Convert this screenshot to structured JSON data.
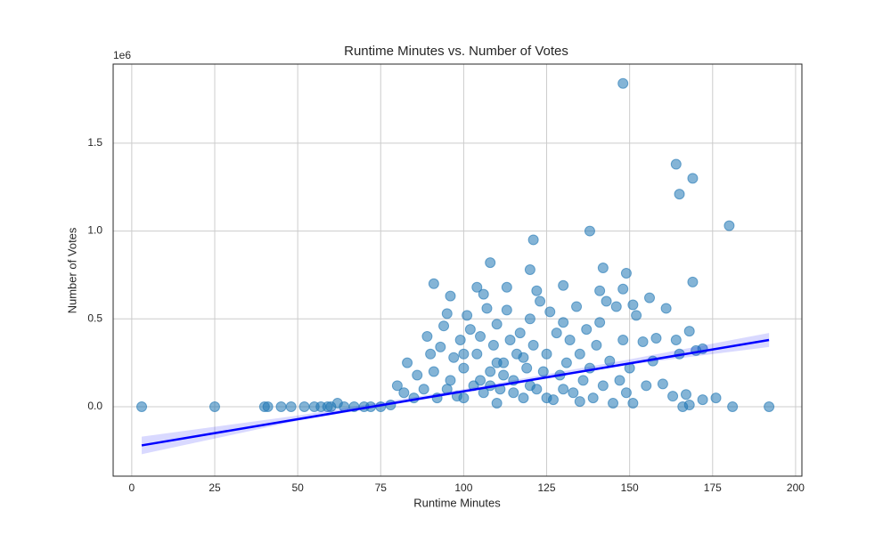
{
  "chart_data": {
    "type": "scatter",
    "title": "Runtime Minutes vs. Number of Votes",
    "xlabel": "Runtime Minutes",
    "ylabel": "Number of Votes",
    "y_offset_label": "1e6",
    "xlim": [
      -5.6,
      201.9
    ],
    "ylim": [
      -0.395,
      1.95
    ],
    "xticks": [
      0,
      25,
      50,
      75,
      100,
      125,
      150,
      175,
      200
    ],
    "yticks": [
      {
        "value": 0,
        "label": "0.0"
      },
      0.5,
      {
        "value": 1,
        "label": "1.0"
      },
      1.5
    ],
    "grid": true,
    "color": "#1f77b4",
    "x": [
      148,
      164,
      169,
      165,
      180,
      138,
      121,
      108,
      120,
      142,
      149,
      91,
      130,
      169,
      104,
      113,
      148,
      122,
      96,
      106,
      141,
      161,
      151,
      3,
      25,
      40,
      41,
      45,
      48,
      52,
      55,
      57,
      59,
      60,
      62,
      64,
      67,
      70,
      72,
      75,
      78,
      80,
      82,
      83,
      85,
      86,
      88,
      89,
      90,
      91,
      92,
      93,
      94,
      95,
      96,
      97,
      98,
      99,
      100,
      101,
      102,
      103,
      104,
      105,
      106,
      107,
      108,
      109,
      110,
      111,
      112,
      113,
      114,
      115,
      116,
      117,
      118,
      119,
      120,
      121,
      122,
      123,
      124,
      125,
      126,
      127,
      128,
      129,
      130,
      131,
      132,
      133,
      134,
      135,
      136,
      137,
      138,
      139,
      140,
      141,
      142,
      143,
      144,
      145,
      146,
      147,
      148,
      149,
      150,
      151,
      152,
      154,
      155,
      156,
      157,
      158,
      160,
      163,
      164,
      165,
      166,
      167,
      168,
      168,
      170,
      172,
      172,
      176,
      181,
      192,
      95,
      100,
      105,
      110,
      115,
      120,
      125,
      130,
      135,
      100,
      110,
      118,
      108,
      112
    ],
    "values": [
      1.84,
      1.38,
      1.3,
      1.21,
      1.03,
      1.0,
      0.95,
      0.82,
      0.78,
      0.79,
      0.76,
      0.7,
      0.69,
      0.71,
      0.68,
      0.68,
      0.67,
      0.66,
      0.63,
      0.64,
      0.66,
      0.56,
      0.58,
      0,
      0,
      0,
      0,
      0,
      0,
      0,
      0,
      0,
      0,
      0,
      0.02,
      0,
      0,
      0,
      0,
      0,
      0.01,
      0.12,
      0.08,
      0.25,
      0.05,
      0.18,
      0.1,
      0.4,
      0.3,
      0.2,
      0.05,
      0.34,
      0.46,
      0.53,
      0.15,
      0.28,
      0.06,
      0.38,
      0.22,
      0.52,
      0.44,
      0.12,
      0.3,
      0.4,
      0.08,
      0.56,
      0.2,
      0.35,
      0.47,
      0.1,
      0.25,
      0.55,
      0.38,
      0.15,
      0.3,
      0.42,
      0.05,
      0.22,
      0.5,
      0.35,
      0.1,
      0.6,
      0.2,
      0.3,
      0.54,
      0.04,
      0.42,
      0.18,
      0.48,
      0.25,
      0.38,
      0.08,
      0.57,
      0.3,
      0.15,
      0.44,
      0.22,
      0.05,
      0.35,
      0.48,
      0.12,
      0.6,
      0.26,
      0.02,
      0.57,
      0.15,
      0.38,
      0.08,
      0.22,
      0.02,
      0.52,
      0.37,
      0.12,
      0.62,
      0.26,
      0.39,
      0.13,
      0.06,
      0.38,
      0.3,
      0,
      0.07,
      0.43,
      0.01,
      0.32,
      0.04,
      0.33,
      0.05,
      0,
      0,
      0.1,
      0.05,
      0.15,
      0.02,
      0.08,
      0.12,
      0.05,
      0.1,
      0.03,
      0.3,
      0.25,
      0.28,
      0.12,
      0.18
    ],
    "regression": {
      "color": "#0000ff",
      "x": [
        3,
        192
      ],
      "values": [
        -0.22,
        0.38
      ],
      "band_x": [
        3,
        50,
        100,
        150,
        192
      ],
      "band_lower": [
        -0.27,
        -0.08,
        0.08,
        0.24,
        0.34
      ],
      "band_upper": [
        -0.17,
        -0.05,
        0.1,
        0.27,
        0.42
      ]
    }
  }
}
